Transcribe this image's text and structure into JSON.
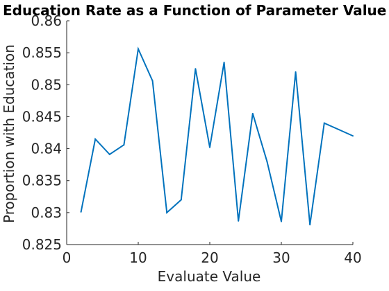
{
  "chart_data": {
    "type": "line",
    "title": "Education Rate as a Function of Parameter Value",
    "xlabel": "Evaluate Value",
    "ylabel": "Proportion with Education",
    "xlim": [
      0,
      40
    ],
    "ylim": [
      0.825,
      0.86
    ],
    "xticks": [
      0,
      10,
      20,
      30,
      40
    ],
    "xtick_labels": [
      "0",
      "10",
      "20",
      "30",
      "40"
    ],
    "yticks": [
      0.825,
      0.83,
      0.835,
      0.84,
      0.845,
      0.85,
      0.855,
      0.86
    ],
    "ytick_labels": [
      "0.825",
      "0.83",
      "0.835",
      "0.84",
      "0.845",
      "0.85",
      "0.855",
      "0.86"
    ],
    "grid": false,
    "series": [
      {
        "color": "#0072BD",
        "x": [
          2,
          4,
          6,
          8,
          10,
          12,
          14,
          16,
          18,
          20,
          22,
          24,
          26,
          28,
          30,
          32,
          34,
          36,
          38,
          40
        ],
        "y": [
          0.8301,
          0.8415,
          0.8391,
          0.8406,
          0.8556,
          0.8506,
          0.83,
          0.832,
          0.8525,
          0.8402,
          0.8535,
          0.8287,
          0.8455,
          0.838,
          0.8286,
          0.852,
          0.8281,
          0.844,
          0.843,
          0.842
        ]
      }
    ]
  }
}
